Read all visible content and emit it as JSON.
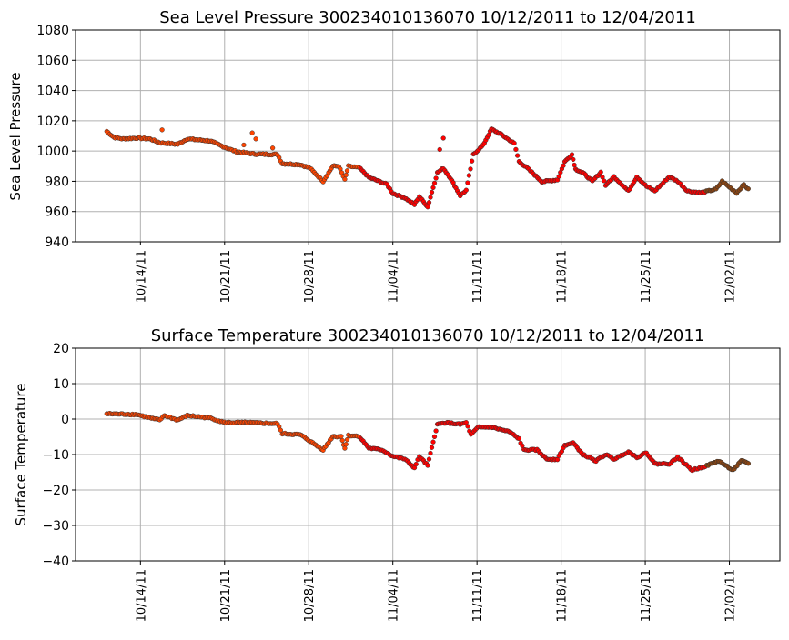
{
  "chart_data": [
    {
      "type": "scatter",
      "title": "Sea Level Pressure 300234010136070  10/12/2011 to 12/04/2011",
      "xlabel": "",
      "ylabel": "Sea Level Pressure",
      "x_units": "days since 10/12/2011",
      "xlim": [
        -3.4,
        55.2
      ],
      "ylim": [
        940,
        1080
      ],
      "yticks": [
        940,
        960,
        980,
        1000,
        1020,
        1040,
        1060,
        1080
      ],
      "xticks": [
        2,
        9,
        16,
        23,
        30,
        37,
        44,
        51
      ],
      "xtick_labels": [
        "10/14/11",
        "10/21/11",
        "10/28/11",
        "11/04/11",
        "11/11/11",
        "11/18/11",
        "11/25/11",
        "12/02/11"
      ],
      "grid": true,
      "color_segments": [
        {
          "until": 20.2,
          "color": "#ff4500"
        },
        {
          "until": 49.0,
          "color": "#ff0000"
        },
        {
          "until": 99,
          "color": "#8b4513"
        }
      ],
      "series": [
        {
          "name": "Sea Level Pressure",
          "x": [
            -0.8,
            -0.2,
            0.56,
            1.7,
            2.8,
            3.6,
            5.1,
            5.9,
            7.8,
            9.0,
            10.0,
            11.5,
            13.4,
            13.8,
            15.3,
            16.1,
            17.2,
            18.0,
            18.5,
            19.0,
            19.3,
            20.2,
            21.0,
            22.5,
            23.0,
            24.0,
            24.8,
            25.2,
            25.9,
            26.7,
            27.2,
            27.8,
            28.6,
            29.1,
            29.7,
            30.5,
            31.2,
            32.0,
            33.1,
            33.5,
            34.2,
            35.4,
            36.7,
            37.3,
            37.9,
            38.2,
            38.8,
            39.6,
            40.3,
            40.7,
            41.4,
            42.6,
            43.3,
            44.1,
            44.8,
            46.0,
            46.7,
            47.5,
            48.6,
            49.9,
            50.4,
            51.6,
            52.2,
            52.7
          ],
          "y": [
            1013,
            1009,
            1008,
            1008.6,
            1008,
            1005.5,
            1004.5,
            1008,
            1006.7,
            1002.5,
            999.5,
            998,
            997.7,
            991.7,
            991,
            988.7,
            980,
            990,
            990,
            981,
            990,
            989,
            982.6,
            978,
            972,
            969,
            964.6,
            970,
            963,
            985.7,
            988.6,
            982,
            970.6,
            974,
            997.7,
            1003.7,
            1014.5,
            1011,
            1005,
            993,
            988.6,
            979.7,
            981,
            993,
            997.7,
            988,
            985.7,
            980,
            986,
            977.3,
            983,
            973.6,
            983,
            976.7,
            973.6,
            983,
            980,
            973.6,
            972.4,
            974.8,
            980,
            972.4,
            977.8,
            973.6
          ]
        }
      ],
      "outliers": {
        "x": [
          3.8,
          10.6,
          11.3,
          11.6,
          13.0,
          27.2,
          26.9
        ],
        "y": [
          1014,
          1004,
          1012,
          1008,
          1002,
          1008.5,
          1001
        ]
      }
    },
    {
      "type": "scatter",
      "title": "Surface Temperature 300234010136070  10/12/2011 to 12/04/2011",
      "xlabel": "",
      "ylabel": "Surface Temperature",
      "x_units": "days since 10/12/2011",
      "xlim": [
        -3.4,
        55.2
      ],
      "ylim": [
        -40,
        20
      ],
      "yticks": [
        -40,
        -30,
        -20,
        -10,
        0,
        10,
        20
      ],
      "xticks": [
        2,
        9,
        16,
        23,
        30,
        37,
        44,
        51
      ],
      "xtick_labels": [
        "10/14/11",
        "10/21/11",
        "10/28/11",
        "11/04/11",
        "11/11/11",
        "11/18/11",
        "11/25/11",
        "12/02/11"
      ],
      "grid": true,
      "color_segments": [
        {
          "until": 20.2,
          "color": "#ff4500"
        },
        {
          "until": 49.0,
          "color": "#ff0000"
        },
        {
          "until": 99,
          "color": "#8b4513"
        }
      ],
      "series": [
        {
          "name": "Surface Temperature",
          "x": [
            -0.8,
            1.7,
            2.8,
            3.6,
            4.0,
            5.1,
            5.9,
            7.8,
            9.0,
            10.8,
            13.4,
            13.8,
            15.3,
            16.1,
            17.2,
            18.0,
            18.7,
            19.0,
            19.3,
            20.2,
            21.0,
            22.1,
            23.0,
            24.0,
            24.8,
            25.2,
            25.9,
            26.7,
            27.4,
            28.6,
            29.1,
            29.5,
            30.1,
            31.2,
            32.7,
            33.5,
            33.9,
            35.0,
            35.8,
            36.7,
            37.3,
            38.0,
            38.8,
            39.9,
            40.7,
            41.4,
            42.6,
            43.3,
            44.1,
            44.8,
            46.0,
            46.7,
            47.9,
            49.0,
            50.1,
            51.3,
            52.0,
            52.7
          ],
          "y": [
            1.5,
            1.3,
            0.3,
            -0.3,
            1.0,
            -0.3,
            1.0,
            0.3,
            -1.0,
            -1.0,
            -1.3,
            -4.1,
            -4.4,
            -6.2,
            -8.7,
            -4.9,
            -4.9,
            -8.2,
            -4.6,
            -4.9,
            -8.2,
            -8.7,
            -10.5,
            -11.3,
            -13.8,
            -10.5,
            -13.1,
            -1.5,
            -1.0,
            -1.5,
            -1.0,
            -4.4,
            -2.3,
            -2.3,
            -3.6,
            -5.6,
            -8.7,
            -8.7,
            -11.3,
            -11.3,
            -7.4,
            -6.7,
            -10.0,
            -11.8,
            -10.0,
            -11.3,
            -9.2,
            -10.8,
            -9.5,
            -12.6,
            -12.6,
            -10.8,
            -14.4,
            -13.3,
            -11.8,
            -14.4,
            -11.8,
            -12.6
          ]
        }
      ]
    }
  ]
}
